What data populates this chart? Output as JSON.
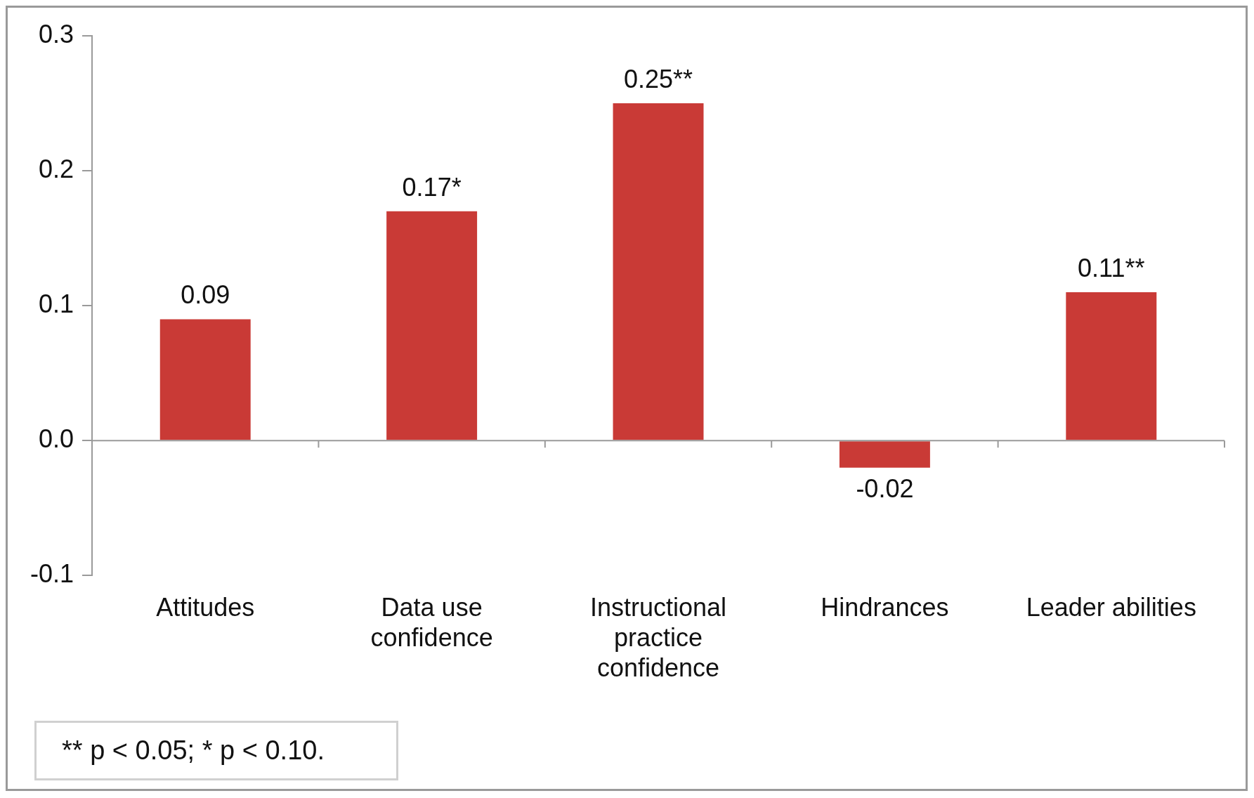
{
  "chart_data": {
    "type": "bar",
    "categories": [
      "Attitudes",
      "Data use confidence",
      "Instructional practice confidence",
      "Hindrances",
      "Leader abilities"
    ],
    "values": [
      0.09,
      0.17,
      0.25,
      -0.02,
      0.11
    ],
    "color": "#c93a36",
    "value_labels": [
      "0.09",
      "0.17*",
      "0.25**",
      "-0.02",
      "0.11**"
    ],
    "ylim": [
      -0.1,
      0.3
    ],
    "yticks": [
      {
        "value": -0.1,
        "label": "-0.1"
      },
      {
        "value": 0,
        "label": "0.0"
      },
      {
        "value": 0.1,
        "label": "0.1"
      },
      {
        "value": 0.2,
        "label": "0.2"
      },
      {
        "value": 0.3,
        "label": "0.3"
      }
    ],
    "legend": false,
    "annotations": [
      "** p < 0.05; * p < 0.10."
    ]
  }
}
